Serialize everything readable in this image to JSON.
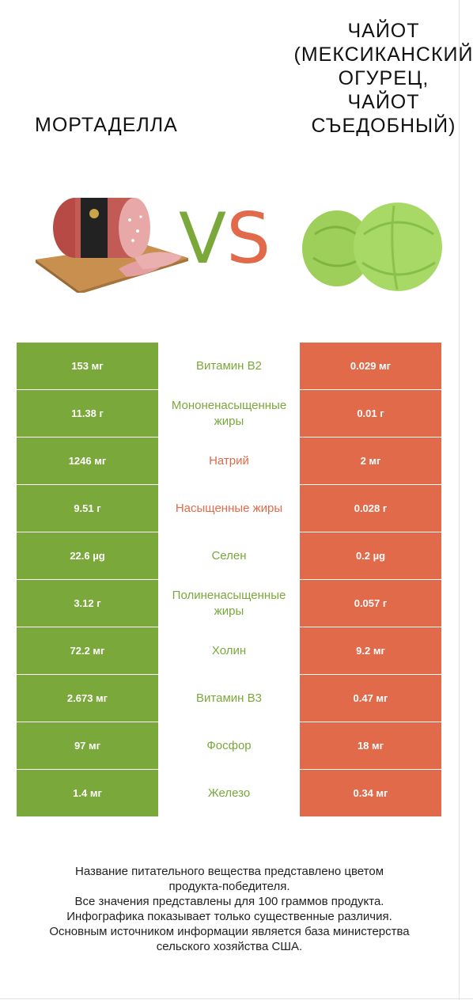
{
  "header": {
    "left_title": "МОРТАДЕЛЛА",
    "right_title": "ЧАЙОТ\n(МЕКСИКАНСКИЙ\nОГУРЕЦ,\nЧАЙОТ\nСЪЕДОБНЫЙ)",
    "vs_v": "V",
    "vs_s": "S"
  },
  "colors": {
    "left": "#7aa83a",
    "right": "#e06a4a"
  },
  "rows": [
    {
      "left": "153 мг",
      "name": "Витамин B2",
      "right": "0.029 мг",
      "winner": "left"
    },
    {
      "left": "11.38 г",
      "name": "Мононенасыщенные жиры",
      "right": "0.01 г",
      "winner": "left"
    },
    {
      "left": "1246 мг",
      "name": "Натрий",
      "right": "2 мг",
      "winner": "right"
    },
    {
      "left": "9.51 г",
      "name": "Насыщенные жиры",
      "right": "0.028 г",
      "winner": "right"
    },
    {
      "left": "22.6 µg",
      "name": "Селен",
      "right": "0.2 µg",
      "winner": "left"
    },
    {
      "left": "3.12 г",
      "name": "Полиненасыщенные жиры",
      "right": "0.057 г",
      "winner": "left"
    },
    {
      "left": "72.2 мг",
      "name": "Холин",
      "right": "9.2 мг",
      "winner": "left"
    },
    {
      "left": "2.673 мг",
      "name": "Витамин B3",
      "right": "0.47 мг",
      "winner": "left"
    },
    {
      "left": "97 мг",
      "name": "Фосфор",
      "right": "18 мг",
      "winner": "left"
    },
    {
      "left": "1.4 мг",
      "name": "Железо",
      "right": "0.34 мг",
      "winner": "left"
    }
  ],
  "footer": {
    "line1": "Название питательного вещества представлено цветом",
    "line2": "продукта-победителя.",
    "line3": "Все значения представлены для 100 граммов продукта.",
    "line4": "Инфографика показывает только существенные различия.",
    "line5": "Основным источником информации является база министерства",
    "line6": "сельского хозяйства США."
  }
}
